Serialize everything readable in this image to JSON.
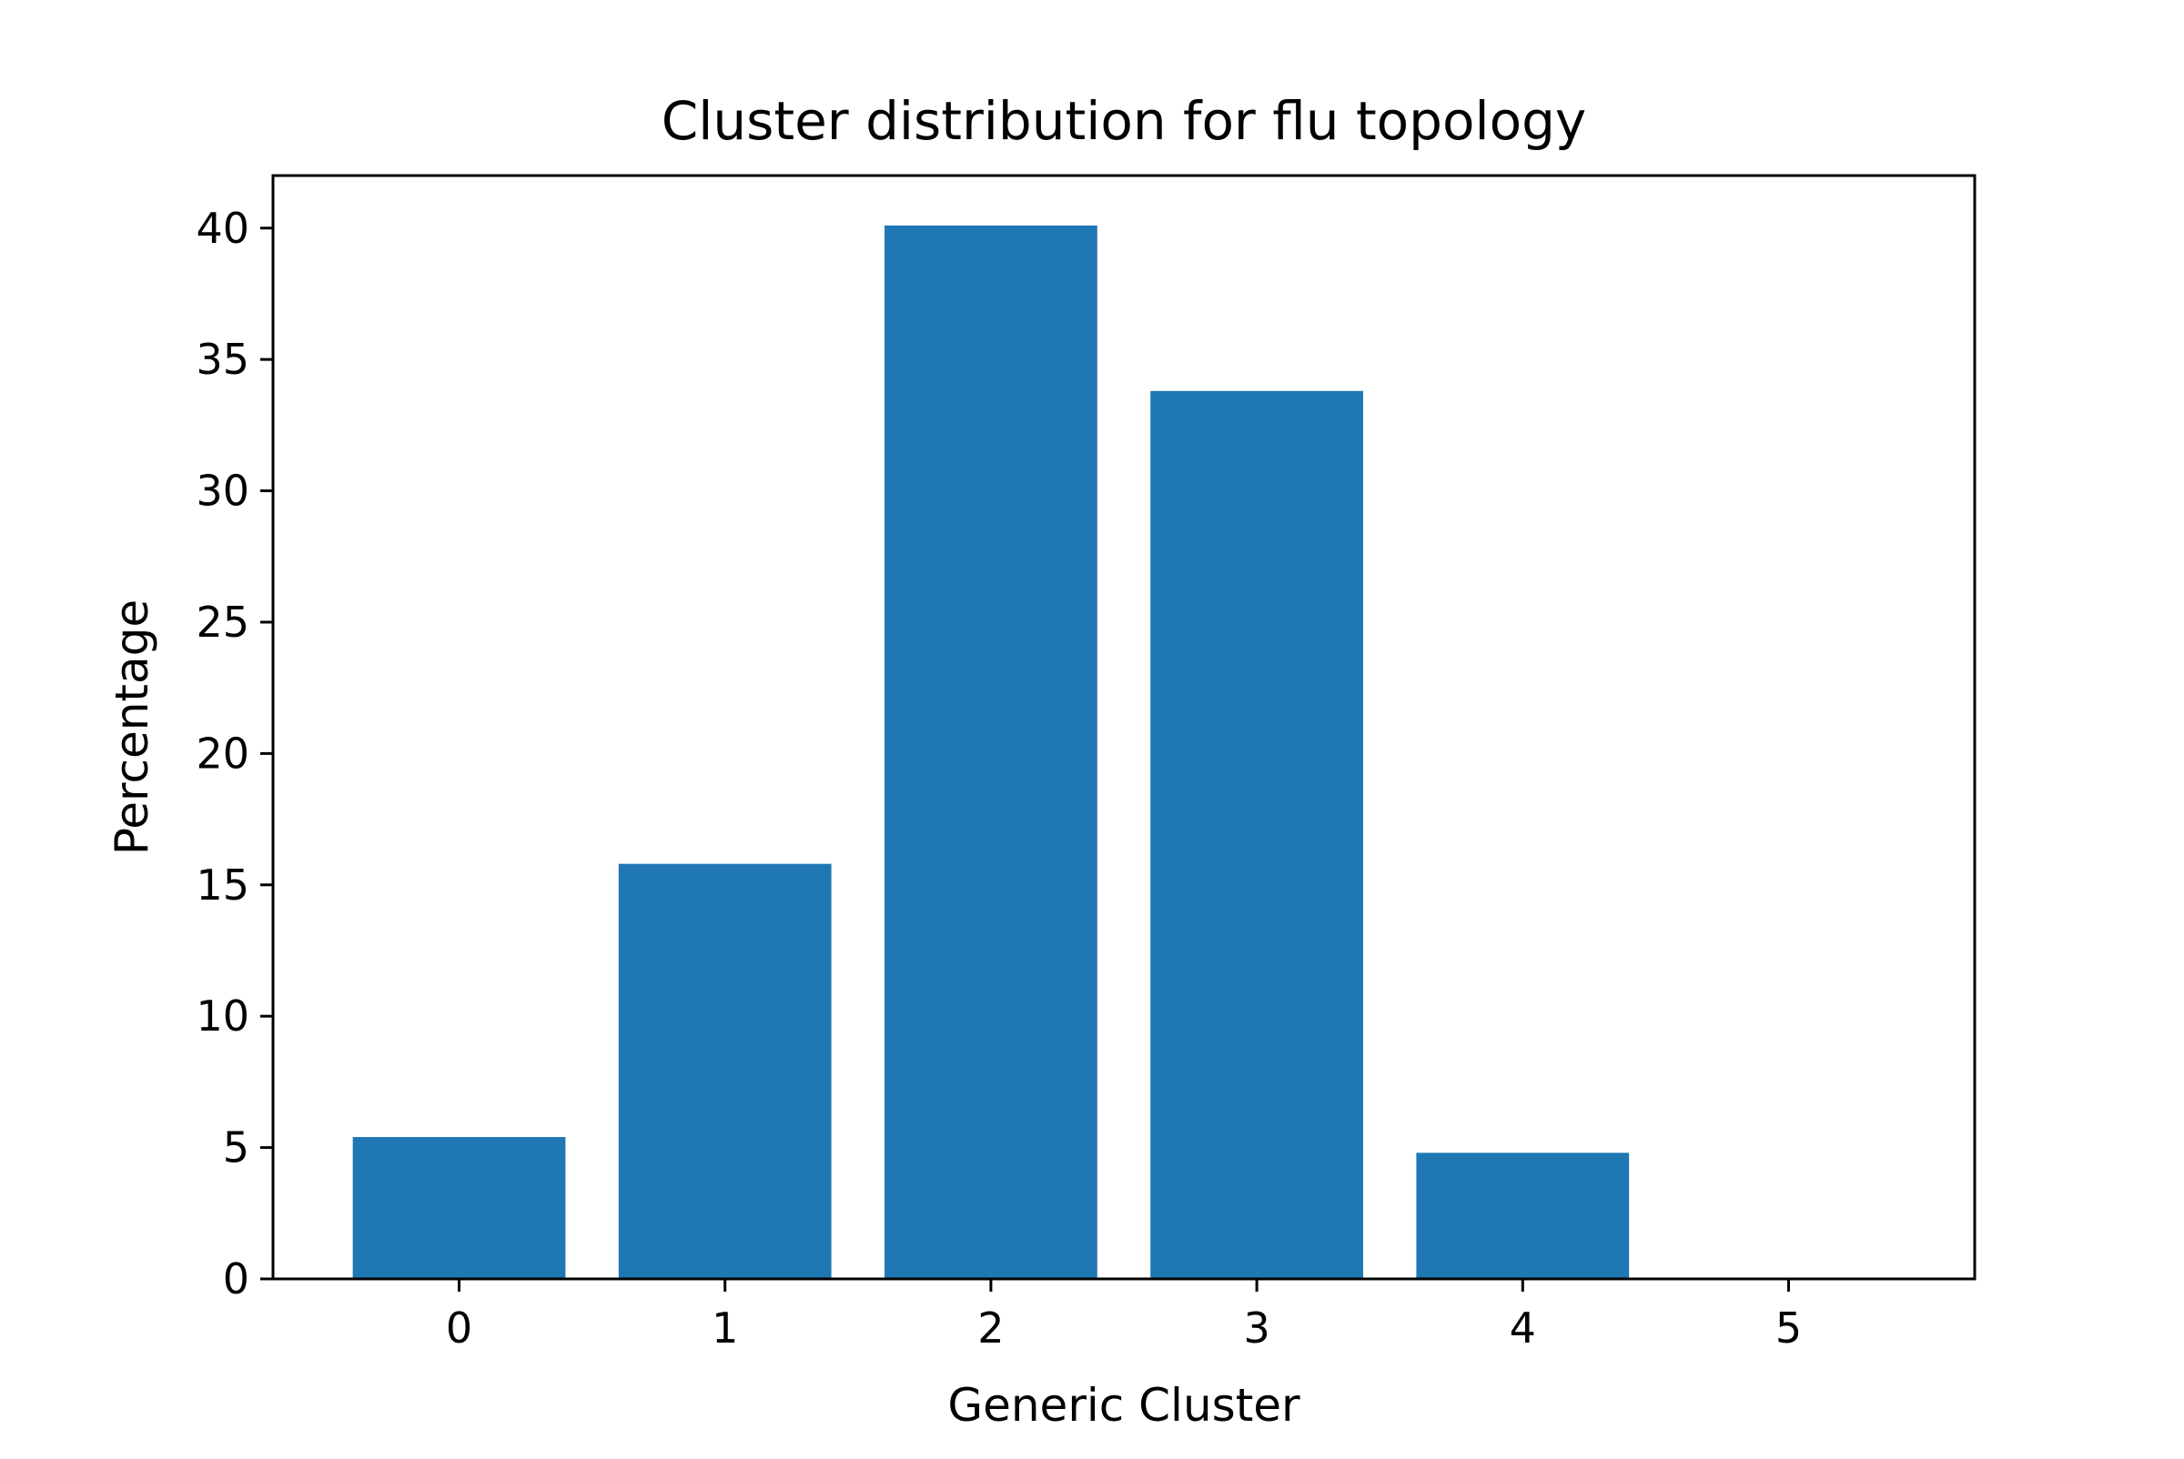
{
  "chart_data": {
    "type": "bar",
    "title": "Cluster distribution for flu topology",
    "xlabel": "Generic Cluster",
    "ylabel": "Percentage",
    "categories": [
      "0",
      "1",
      "2",
      "3",
      "4",
      "5"
    ],
    "values": [
      5.4,
      15.8,
      40.1,
      33.8,
      4.8,
      0
    ],
    "xlim": [
      -0.7,
      5.7
    ],
    "ylim": [
      0,
      42
    ],
    "yticks": [
      0,
      5,
      10,
      15,
      20,
      25,
      30,
      35,
      40
    ],
    "bar_color": "#1f77b4",
    "grid": false,
    "legend": "none"
  }
}
